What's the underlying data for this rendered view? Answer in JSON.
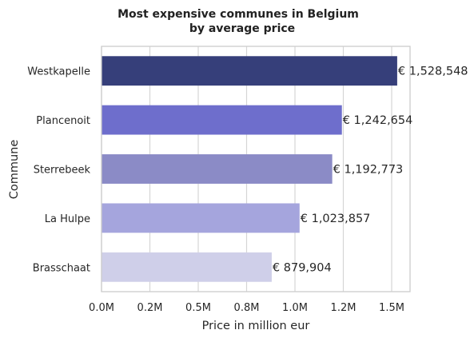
{
  "chart_data": {
    "type": "bar",
    "orientation": "horizontal",
    "title": [
      "Most expensive communes in Belgium",
      "by average price"
    ],
    "xlabel": "Price in million eur",
    "ylabel": "Commune",
    "categories": [
      "Westkapelle",
      "Plancenoit",
      "Sterrebeek",
      "La Hulpe",
      "Brasschaat"
    ],
    "values": [
      1528548,
      1242654,
      1192773,
      1023857,
      879904
    ],
    "data_labels": [
      "€ 1,528,548",
      "€ 1,242,654",
      "€ 1,192,773",
      "€ 1,023,857",
      "€ 879,904"
    ],
    "colors": [
      "#363f7a",
      "#6e6ecc",
      "#8b8bc6",
      "#a5a5dd",
      "#cfcfe9"
    ],
    "xlim": [
      0,
      1600000
    ],
    "xticks": [
      0,
      250000,
      500000,
      750000,
      1000000,
      1250000,
      1500000
    ],
    "xtick_labels": [
      "0.0M",
      "0.2M",
      "0.5M",
      "0.8M",
      "1.0M",
      "1.2M",
      "1.5M"
    ],
    "grid": true,
    "grid_axis": "x"
  }
}
